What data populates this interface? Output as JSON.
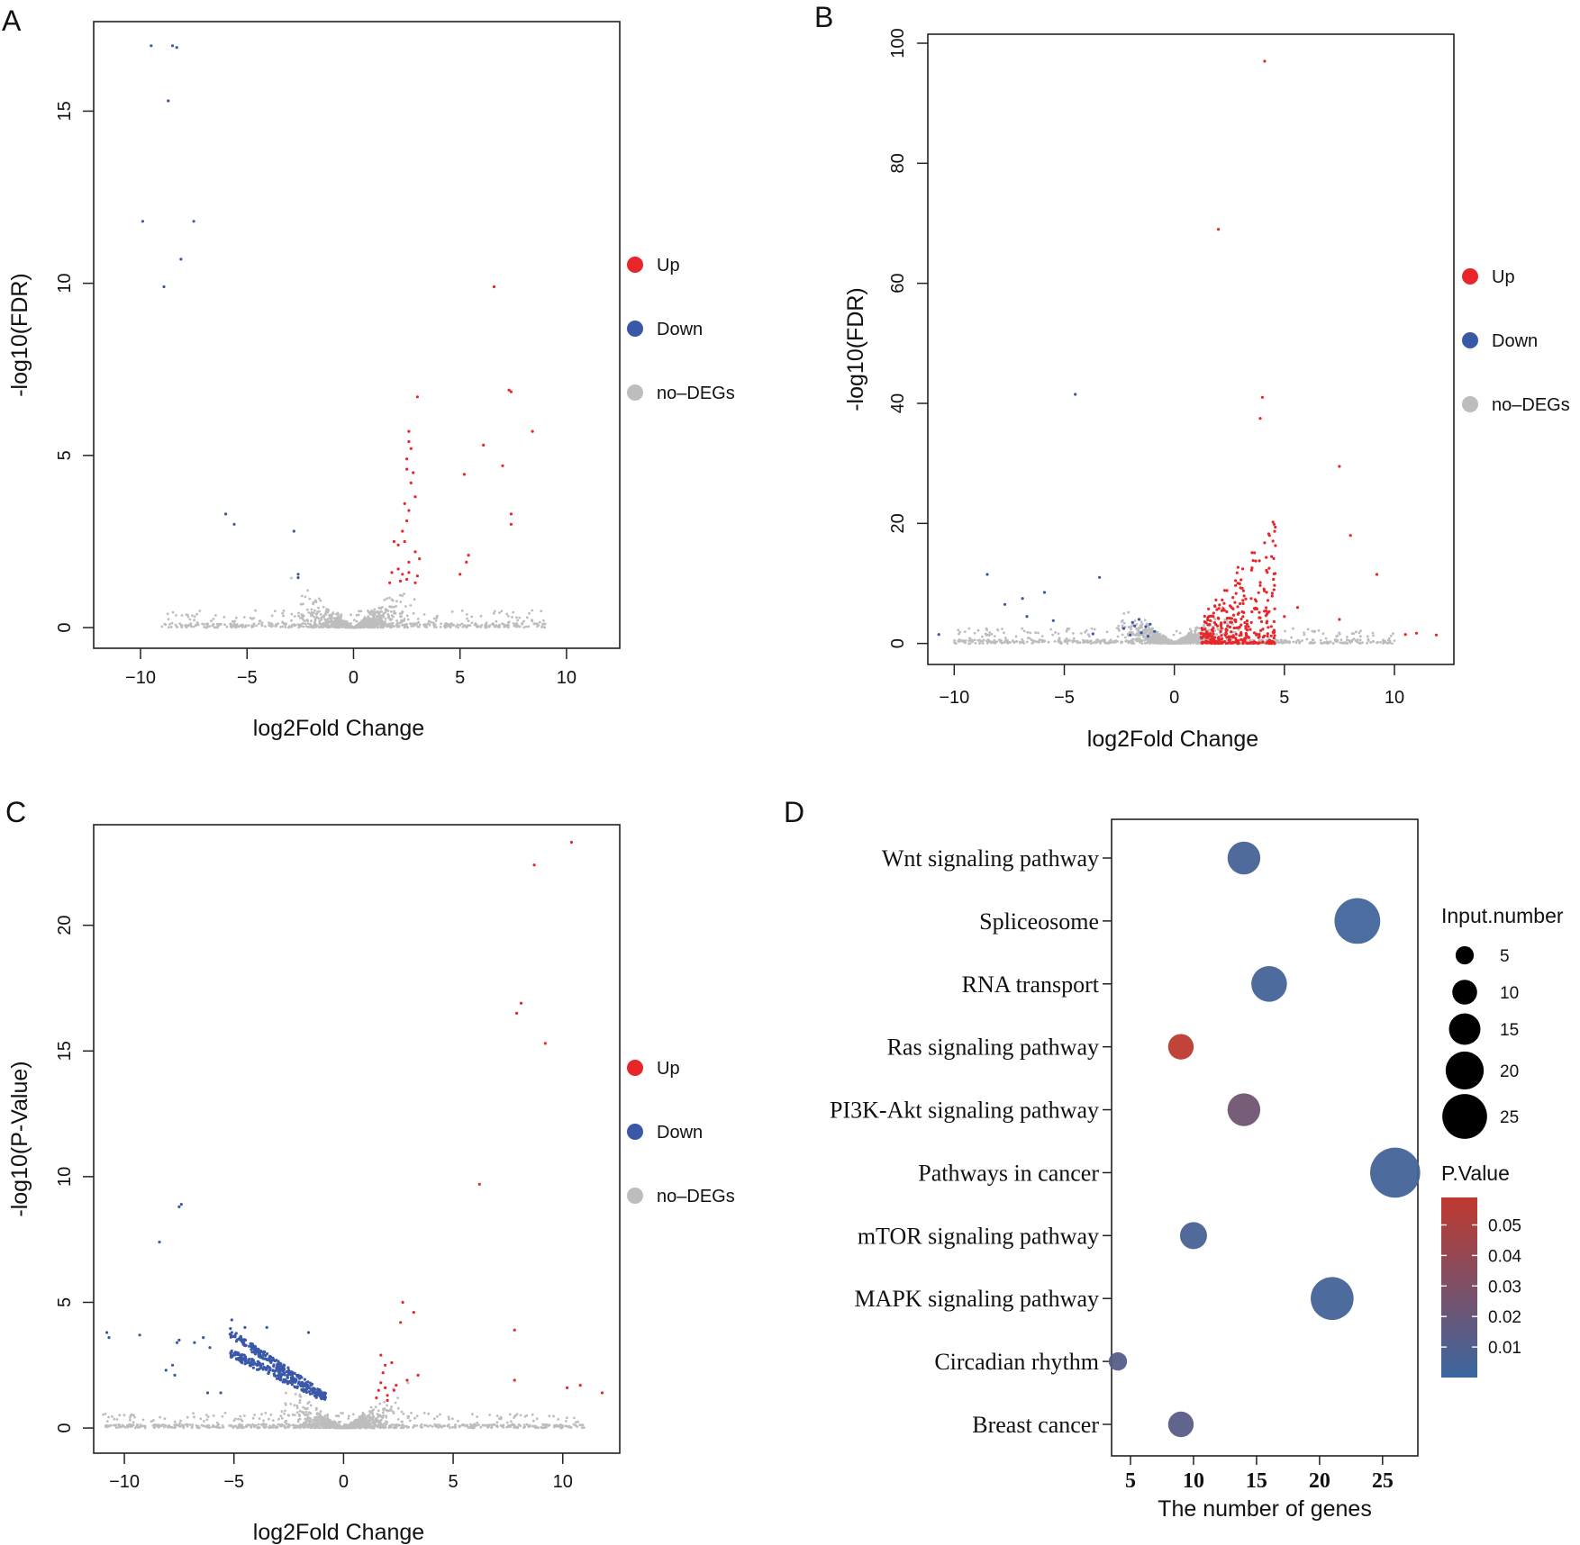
{
  "chart_data": [
    {
      "panel": "A",
      "type": "scatter",
      "title": "",
      "xlabel": "log2Fold Change",
      "ylabel": "-log10(FDR)",
      "xlim": [
        -12.2,
        12.5
      ],
      "ylim": [
        -0.6,
        17.6
      ],
      "xticks": [
        -10,
        -5,
        0,
        5,
        10
      ],
      "yticks": [
        0,
        5,
        10,
        15
      ],
      "legend": {
        "position": "right",
        "items": [
          {
            "label": "Up",
            "color": "#e8262a"
          },
          {
            "label": "Down",
            "color": "#3a58a8"
          },
          {
            "label": "no-DEGs",
            "color": "#bdbdbd"
          }
        ]
      },
      "series": [
        {
          "name": "Up",
          "color": "#e8262a",
          "points": [
            [
              6.6,
              9.9
            ],
            [
              7.3,
              6.9
            ],
            [
              7.4,
              6.85
            ],
            [
              3.0,
              6.7
            ],
            [
              8.4,
              5.7
            ],
            [
              2.6,
              5.7
            ],
            [
              2.6,
              5.4
            ],
            [
              2.7,
              5.2
            ],
            [
              2.5,
              4.9
            ],
            [
              6.1,
              5.3
            ],
            [
              2.5,
              4.6
            ],
            [
              2.8,
              4.5
            ],
            [
              5.2,
              4.45
            ],
            [
              7.0,
              4.7
            ],
            [
              2.7,
              4.2
            ],
            [
              2.4,
              3.6
            ],
            [
              2.6,
              3.4
            ],
            [
              2.9,
              3.8
            ],
            [
              7.4,
              3.3
            ],
            [
              7.4,
              3.0
            ],
            [
              2.5,
              3.1
            ],
            [
              2.3,
              2.8
            ],
            [
              2.4,
              2.5
            ],
            [
              1.9,
              2.5
            ],
            [
              2.1,
              2.4
            ],
            [
              2.9,
              2.2
            ],
            [
              3.1,
              2.0
            ],
            [
              5.4,
              2.1
            ],
            [
              5.3,
              1.9
            ],
            [
              2.6,
              1.9
            ],
            [
              1.8,
              1.6
            ],
            [
              2.1,
              1.7
            ],
            [
              2.3,
              1.55
            ],
            [
              2.6,
              1.6
            ],
            [
              3.0,
              1.5
            ],
            [
              5.0,
              1.55
            ],
            [
              2.2,
              1.35
            ],
            [
              1.7,
              1.3
            ],
            [
              2.5,
              1.4
            ],
            [
              2.9,
              1.3
            ]
          ]
        },
        {
          "name": "Down",
          "color": "#3a58a8",
          "points": [
            [
              -9.5,
              16.9
            ],
            [
              -8.5,
              16.9
            ],
            [
              -8.3,
              16.85
            ],
            [
              -8.7,
              15.3
            ],
            [
              -9.9,
              11.8
            ],
            [
              -7.5,
              11.8
            ],
            [
              -8.1,
              10.7
            ],
            [
              -8.9,
              9.9
            ],
            [
              -6.0,
              3.3
            ],
            [
              -5.6,
              3.0
            ],
            [
              -2.8,
              2.8
            ],
            [
              -2.6,
              1.55
            ],
            [
              -2.6,
              1.45
            ]
          ]
        },
        {
          "name": "no-DEGs",
          "color": "#bdbdbd",
          "generator": "volcano",
          "n": 1100,
          "seed": 11,
          "yscale": 1.0,
          "xspread": 9.0
        }
      ]
    },
    {
      "panel": "B",
      "type": "scatter",
      "title": "",
      "xlabel": "log2Fold Change",
      "ylabel": "-log10(FDR)",
      "xlim": [
        -11.2,
        12.7
      ],
      "ylim": [
        -3.5,
        101.5
      ],
      "xticks": [
        -10,
        -5,
        0,
        5,
        10
      ],
      "yticks": [
        0,
        20,
        40,
        60,
        80,
        100
      ],
      "legend": {
        "position": "right",
        "items": [
          {
            "label": "Up",
            "color": "#e8262a"
          },
          {
            "label": "Down",
            "color": "#3a58a8"
          },
          {
            "label": "no-DEGs",
            "color": "#bdbdbd"
          }
        ]
      },
      "series": [
        {
          "name": "Up",
          "color": "#e8262a",
          "points": [
            [
              4.1,
              97
            ],
            [
              2.0,
              69
            ],
            [
              4.0,
              41
            ],
            [
              3.9,
              37.5
            ],
            [
              7.5,
              29.5
            ],
            [
              8.0,
              18
            ],
            [
              9.2,
              11.5
            ],
            [
              7.5,
              4.0
            ],
            [
              10.5,
              1.5
            ],
            [
              11.0,
              1.7
            ],
            [
              11.9,
              1.4
            ],
            [
              5.6,
              6.0
            ],
            [
              5.0,
              4.5
            ]
          ],
          "generator": "cluster",
          "n": 330,
          "seed": 5,
          "cx": [
            1.2,
            4.6
          ],
          "cy": [
            0.5,
            27
          ]
        },
        {
          "name": "Down",
          "color": "#3a58a8",
          "points": [
            [
              -4.5,
              41.5
            ],
            [
              -3.4,
              11
            ],
            [
              -8.5,
              11.5
            ],
            [
              -7.7,
              6.5
            ],
            [
              -6.9,
              7.5
            ],
            [
              -6.7,
              4.5
            ],
            [
              -5.9,
              8.5
            ],
            [
              -5.5,
              3.8
            ],
            [
              -10.7,
              1.5
            ],
            [
              -3.7,
              1.6
            ],
            [
              -2.3,
              2.5
            ],
            [
              -1.9,
              3.5
            ],
            [
              -1.6,
              4.0
            ],
            [
              -1.3,
              2.8
            ],
            [
              -1.1,
              3.2
            ],
            [
              -1.5,
              1.8
            ],
            [
              -2.0,
              1.4
            ],
            [
              -1.2,
              1.2
            ],
            [
              -0.9,
              2.0
            ],
            [
              -1.8,
              2.9
            ]
          ]
        },
        {
          "name": "no-DEGs",
          "color": "#bdbdbd",
          "generator": "volcano",
          "n": 1300,
          "seed": 23,
          "yscale": 5.0,
          "xspread": 10.0
        }
      ]
    },
    {
      "panel": "C",
      "type": "scatter",
      "title": "",
      "xlabel": "log2Fold Change",
      "ylabel": "-log10(P-Value)",
      "xlim": [
        -11.4,
        12.6
      ],
      "ylim": [
        -1.0,
        24.0
      ],
      "xticks": [
        -10,
        -5,
        0,
        5,
        10
      ],
      "yticks": [
        0,
        5,
        10,
        15,
        20
      ],
      "legend": {
        "position": "right",
        "items": [
          {
            "label": "Up",
            "color": "#e8262a"
          },
          {
            "label": "Down",
            "color": "#3a58a8"
          },
          {
            "label": "no-DEGs",
            "color": "#bdbdbd"
          }
        ]
      },
      "series": [
        {
          "name": "Up",
          "color": "#e8262a",
          "points": [
            [
              10.4,
              23.3
            ],
            [
              8.7,
              22.4
            ],
            [
              8.1,
              16.9
            ],
            [
              7.9,
              16.5
            ],
            [
              9.2,
              15.3
            ],
            [
              6.2,
              9.7
            ],
            [
              7.8,
              3.9
            ],
            [
              2.7,
              5.0
            ],
            [
              3.2,
              4.6
            ],
            [
              2.6,
              4.2
            ],
            [
              7.8,
              1.9
            ],
            [
              10.2,
              1.6
            ],
            [
              10.8,
              1.7
            ],
            [
              11.8,
              1.4
            ],
            [
              3.4,
              2.1
            ],
            [
              2.9,
              1.9
            ],
            [
              2.4,
              1.7
            ],
            [
              1.9,
              2.5
            ],
            [
              1.7,
              1.8
            ],
            [
              1.6,
              1.5
            ],
            [
              2.0,
              1.3
            ],
            [
              1.8,
              2.2
            ],
            [
              2.2,
              2.6
            ],
            [
              1.5,
              1.2
            ],
            [
              2.3,
              1.5
            ],
            [
              1.9,
              1.6
            ],
            [
              1.7,
              2.9
            ],
            [
              2.0,
              1.1
            ]
          ]
        },
        {
          "name": "Down",
          "color": "#3a58a8",
          "points": [
            [
              -7.5,
              8.8
            ],
            [
              -7.4,
              8.9
            ],
            [
              -8.4,
              7.4
            ],
            [
              -10.8,
              3.8
            ],
            [
              -10.7,
              3.6
            ],
            [
              -9.3,
              3.7
            ],
            [
              -7.6,
              3.4
            ],
            [
              -7.5,
              3.5
            ],
            [
              -7.8,
              2.5
            ],
            [
              -7.7,
              2.1
            ],
            [
              -6.2,
              1.4
            ],
            [
              -5.6,
              1.4
            ],
            [
              -5.1,
              4.3
            ],
            [
              -4.5,
              4.0
            ],
            [
              -3.5,
              4.0
            ],
            [
              -1.6,
              3.8
            ],
            [
              -8.1,
              2.3
            ],
            [
              -6.8,
              3.4
            ],
            [
              -6.4,
              3.6
            ],
            [
              -6.1,
              3.2
            ]
          ],
          "generator": "bands",
          "n": 420,
          "seed": 31
        },
        {
          "name": "no-DEGs",
          "color": "#bdbdbd",
          "generator": "volcano",
          "n": 1400,
          "seed": 47,
          "yscale": 1.2,
          "xspread": 11.0
        }
      ]
    },
    {
      "panel": "D",
      "type": "bubble",
      "title": "",
      "xlabel": "The number of genes",
      "ylabel": "",
      "xlim": [
        3.5,
        27.8
      ],
      "xticks": [
        5,
        10,
        15,
        20,
        25
      ],
      "categories": [
        "Wnt signaling pathway",
        "Spliceosome",
        "RNA transport",
        "Ras signaling pathway",
        "PI3K-Akt signaling pathway",
        "Pathways in cancer",
        "mTOR signaling pathway",
        "MAPK signaling pathway",
        "Circadian rhythm",
        "Breast cancer"
      ],
      "values": [
        14,
        23,
        16,
        9,
        14,
        26,
        10,
        21,
        4,
        9
      ],
      "pvalues": [
        0.005,
        0.003,
        0.004,
        0.058,
        0.024,
        0.004,
        0.006,
        0.004,
        0.012,
        0.013
      ],
      "size_legend": {
        "title": "Input.number",
        "items": [
          5,
          10,
          15,
          20,
          25
        ]
      },
      "color_legend": {
        "title": "P.Value",
        "ticks": [
          "0.05",
          "0.04",
          "0.03",
          "0.02",
          "0.01"
        ],
        "tick_values": [
          0.05,
          0.04,
          0.03,
          0.02,
          0.01
        ],
        "range": [
          0.0,
          0.059
        ],
        "low_color": "#3a67a0",
        "high_color": "#c0392e"
      }
    }
  ],
  "panel_labels": [
    "A",
    "B",
    "C",
    "D"
  ]
}
